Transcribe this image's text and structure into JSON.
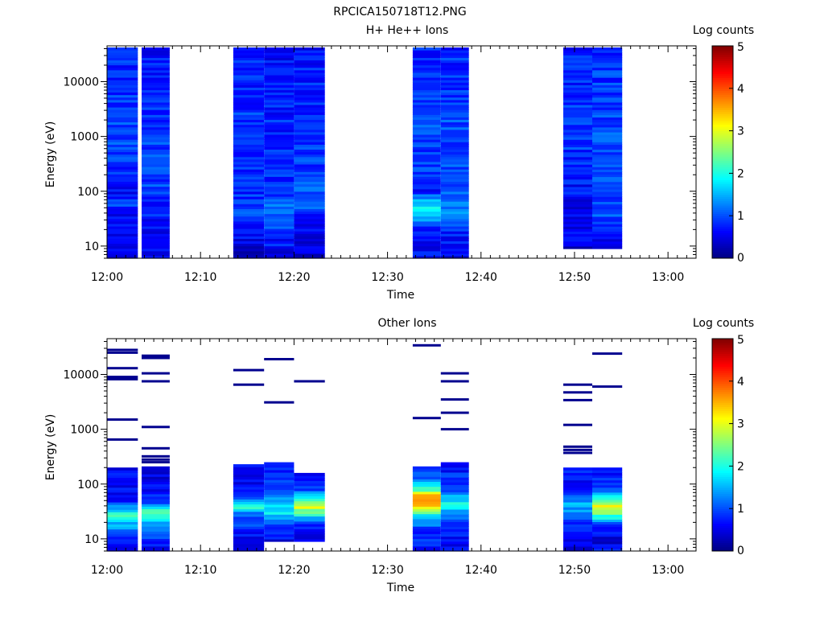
{
  "figure_title": "RPCICA150718T12.PNG",
  "chart_data": [
    {
      "type": "heatmap",
      "title": "H+ He++ Ions",
      "xlabel": "Time",
      "ylabel": "Energy (eV)",
      "x_ticks": [
        "12:00",
        "12:10",
        "12:20",
        "12:30",
        "12:40",
        "12:50",
        "13:00"
      ],
      "x_range_minutes": [
        0,
        63
      ],
      "y_ticks": [
        "10",
        "100",
        "1000",
        "10000"
      ],
      "y_scale": "log",
      "y_range": [
        6,
        45000
      ],
      "colorbar": {
        "label": "Log counts",
        "ticks": [
          "0",
          "1",
          "2",
          "3",
          "4",
          "5"
        ],
        "range": [
          0,
          5
        ],
        "colormap": "jet"
      },
      "columns": [
        {
          "start_min": 0.0,
          "end_min": 3.3,
          "min_energy": 6,
          "max_energy": 42000,
          "profile": [
            [
              6,
              0.5
            ],
            [
              15,
              0.7
            ],
            [
              30,
              0.6
            ],
            [
              60,
              0.9
            ],
            [
              100,
              0.6
            ],
            [
              300,
              0.9
            ],
            [
              1000,
              1.0
            ],
            [
              5000,
              0.9
            ],
            [
              42000,
              0.8
            ]
          ]
        },
        {
          "start_min": 3.7,
          "end_min": 6.7,
          "min_energy": 6,
          "max_energy": 42000,
          "profile": [
            [
              6,
              0.5
            ],
            [
              15,
              0.6
            ],
            [
              25,
              0.7
            ],
            [
              60,
              0.8
            ],
            [
              100,
              0.9
            ],
            [
              300,
              1.0
            ],
            [
              1000,
              0.9
            ],
            [
              10000,
              0.8
            ],
            [
              42000,
              0.7
            ]
          ]
        },
        {
          "start_min": 13.5,
          "end_min": 16.8,
          "min_energy": 6,
          "max_energy": 42000,
          "profile": [
            [
              6,
              0.3
            ],
            [
              15,
              0.6
            ],
            [
              30,
              0.9
            ],
            [
              60,
              0.9
            ],
            [
              100,
              0.8
            ],
            [
              1000,
              0.9
            ],
            [
              10000,
              0.8
            ],
            [
              42000,
              0.7
            ]
          ]
        },
        {
          "start_min": 16.8,
          "end_min": 20.0,
          "min_energy": 6,
          "max_energy": 42000,
          "profile": [
            [
              6,
              0.5
            ],
            [
              15,
              0.8
            ],
            [
              30,
              1.0
            ],
            [
              60,
              1.1
            ],
            [
              100,
              0.9
            ],
            [
              1000,
              0.8
            ],
            [
              10000,
              0.7
            ],
            [
              42000,
              0.7
            ]
          ]
        },
        {
          "start_min": 20.0,
          "end_min": 23.3,
          "min_energy": 6,
          "max_energy": 42000,
          "profile": [
            [
              6,
              0.4
            ],
            [
              15,
              0.6
            ],
            [
              30,
              0.5
            ],
            [
              50,
              1.3
            ],
            [
              100,
              1.0
            ],
            [
              300,
              0.9
            ],
            [
              1000,
              0.9
            ],
            [
              10000,
              0.8
            ],
            [
              42000,
              0.7
            ]
          ]
        },
        {
          "start_min": 32.7,
          "end_min": 35.7,
          "min_energy": 6,
          "max_energy": 42000,
          "profile": [
            [
              6,
              0.6
            ],
            [
              20,
              0.7
            ],
            [
              40,
              1.9
            ],
            [
              70,
              1.6
            ],
            [
              100,
              0.7
            ],
            [
              300,
              0.9
            ],
            [
              1000,
              1.0
            ],
            [
              10000,
              0.9
            ],
            [
              42000,
              0.8
            ]
          ]
        },
        {
          "start_min": 35.7,
          "end_min": 38.7,
          "min_energy": 6,
          "max_energy": 42000,
          "profile": [
            [
              6,
              0.5
            ],
            [
              20,
              0.8
            ],
            [
              40,
              1.2
            ],
            [
              100,
              1.1
            ],
            [
              300,
              1.0
            ],
            [
              1000,
              1.0
            ],
            [
              10000,
              0.9
            ],
            [
              42000,
              0.8
            ]
          ]
        },
        {
          "start_min": 48.8,
          "end_min": 51.9,
          "min_energy": 9,
          "max_energy": 42000,
          "profile": [
            [
              9,
              0.4
            ],
            [
              20,
              0.6
            ],
            [
              50,
              0.6
            ],
            [
              100,
              0.7
            ],
            [
              300,
              0.8
            ],
            [
              1000,
              0.9
            ],
            [
              10000,
              0.8
            ],
            [
              42000,
              0.7
            ]
          ]
        },
        {
          "start_min": 51.9,
          "end_min": 55.1,
          "min_energy": 9,
          "max_energy": 42000,
          "profile": [
            [
              9,
              0.5
            ],
            [
              20,
              0.8
            ],
            [
              40,
              1.0
            ],
            [
              100,
              1.0
            ],
            [
              300,
              0.9
            ],
            [
              1000,
              1.0
            ],
            [
              10000,
              0.9
            ],
            [
              42000,
              0.8
            ]
          ]
        }
      ]
    },
    {
      "type": "heatmap",
      "title": "Other Ions",
      "xlabel": "Time",
      "ylabel": "Energy (eV)",
      "x_ticks": [
        "12:00",
        "12:10",
        "12:20",
        "12:30",
        "12:40",
        "12:50",
        "13:00"
      ],
      "x_range_minutes": [
        0,
        63
      ],
      "y_ticks": [
        "10",
        "100",
        "1000",
        "10000"
      ],
      "y_scale": "log",
      "y_range": [
        6,
        45000
      ],
      "colorbar": {
        "label": "Log counts",
        "ticks": [
          "0",
          "1",
          "2",
          "3",
          "4",
          "5"
        ],
        "range": [
          0,
          5
        ],
        "colormap": "jet"
      },
      "columns": [
        {
          "start_min": 0.0,
          "end_min": 3.3,
          "min_energy": 6,
          "max_energy": 200,
          "profile": [
            [
              6,
              0.6
            ],
            [
              12,
              1.0
            ],
            [
              20,
              1.6
            ],
            [
              28,
              2.3
            ],
            [
              35,
              1.5
            ],
            [
              50,
              0.8
            ],
            [
              100,
              0.5
            ],
            [
              200,
              0.6
            ]
          ],
          "lines": [
            28000,
            25000,
            13000,
            9000,
            8200,
            1500,
            650
          ]
        },
        {
          "start_min": 3.7,
          "end_min": 6.7,
          "min_energy": 6,
          "max_energy": 210,
          "profile": [
            [
              6,
              0.5
            ],
            [
              12,
              0.9
            ],
            [
              20,
              1.5
            ],
            [
              30,
              2.5
            ],
            [
              40,
              1.3
            ],
            [
              60,
              0.8
            ],
            [
              100,
              0.6
            ],
            [
              210,
              0.5
            ]
          ],
          "lines": [
            22000,
            20000,
            10500,
            7500,
            1100,
            450,
            320,
            280,
            250
          ]
        },
        {
          "start_min": 13.5,
          "end_min": 16.8,
          "min_energy": 6,
          "max_energy": 230,
          "profile": [
            [
              6,
              0.4
            ],
            [
              15,
              0.7
            ],
            [
              30,
              1.3
            ],
            [
              40,
              2.2
            ],
            [
              55,
              1.2
            ],
            [
              80,
              0.7
            ],
            [
              150,
              0.5
            ],
            [
              230,
              0.6
            ]
          ],
          "lines": [
            12000,
            6500
          ]
        },
        {
          "start_min": 16.8,
          "end_min": 20.0,
          "min_energy": 9,
          "max_energy": 250,
          "profile": [
            [
              9,
              0.5
            ],
            [
              15,
              0.8
            ],
            [
              25,
              1.6
            ],
            [
              35,
              1.9
            ],
            [
              50,
              1.5
            ],
            [
              80,
              1.1
            ],
            [
              120,
              0.8
            ],
            [
              250,
              0.6
            ]
          ],
          "lines": [
            19000,
            3100
          ]
        },
        {
          "start_min": 20.0,
          "end_min": 23.3,
          "min_energy": 9,
          "max_energy": 160,
          "profile": [
            [
              9,
              0.5
            ],
            [
              20,
              0.8
            ],
            [
              30,
              2.2
            ],
            [
              40,
              3.1
            ],
            [
              55,
              2.0
            ],
            [
              80,
              0.8
            ],
            [
              160,
              0.6
            ]
          ],
          "lines": [
            7500
          ]
        },
        {
          "start_min": 32.7,
          "end_min": 35.7,
          "min_energy": 6,
          "max_energy": 210,
          "profile": [
            [
              6,
              0.6
            ],
            [
              15,
              0.9
            ],
            [
              25,
              1.5
            ],
            [
              35,
              2.8
            ],
            [
              45,
              3.7
            ],
            [
              60,
              3.5
            ],
            [
              80,
              2.3
            ],
            [
              110,
              1.4
            ],
            [
              210,
              0.7
            ]
          ],
          "lines": [
            34000,
            1600
          ]
        },
        {
          "start_min": 35.7,
          "end_min": 38.7,
          "min_energy": 6,
          "max_energy": 250,
          "profile": [
            [
              6,
              0.5
            ],
            [
              12,
              0.7
            ],
            [
              20,
              1.0
            ],
            [
              30,
              1.3
            ],
            [
              40,
              2.2
            ],
            [
              55,
              1.6
            ],
            [
              80,
              1.1
            ],
            [
              150,
              0.8
            ],
            [
              250,
              0.6
            ]
          ],
          "lines": [
            10500,
            7500,
            3500,
            2000,
            1000
          ]
        },
        {
          "start_min": 48.8,
          "end_min": 51.9,
          "min_energy": 6,
          "max_energy": 200,
          "profile": [
            [
              6,
              0.5
            ],
            [
              12,
              0.7
            ],
            [
              20,
              0.9
            ],
            [
              30,
              1.2
            ],
            [
              45,
              1.6
            ],
            [
              60,
              1.0
            ],
            [
              100,
              0.6
            ],
            [
              200,
              0.8
            ]
          ],
          "lines": [
            6500,
            4700,
            3400,
            1200,
            480,
            420,
            370
          ]
        },
        {
          "start_min": 51.9,
          "end_min": 55.1,
          "min_energy": 6,
          "max_energy": 200,
          "profile": [
            [
              6,
              0.7
            ],
            [
              10,
              0.3
            ],
            [
              20,
              1.1
            ],
            [
              30,
              2.6
            ],
            [
              40,
              3.1
            ],
            [
              55,
              1.9
            ],
            [
              80,
              1.0
            ],
            [
              120,
              0.7
            ],
            [
              200,
              0.8
            ]
          ],
          "lines": [
            24000,
            6000
          ]
        }
      ]
    }
  ]
}
